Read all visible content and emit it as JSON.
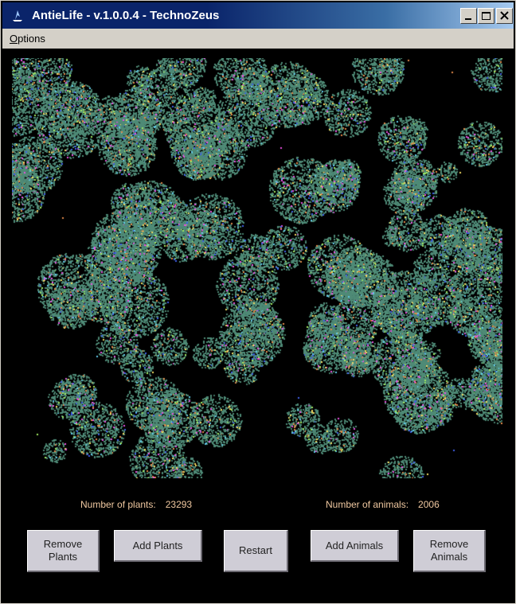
{
  "window": {
    "title": "AntieLife - v.1.0.0.4 - TechnoZeus"
  },
  "menu": {
    "options_label": "Options"
  },
  "stats": {
    "plants_label": "Number of plants:",
    "plants_value": "23293",
    "animals_label": "Number of animals:",
    "animals_value": "2006"
  },
  "buttons": {
    "remove_plants_line1": "Remove",
    "remove_plants_line2": "Plants",
    "add_plants": "Add Plants",
    "restart": "Restart",
    "add_animals": "Add Animals",
    "remove_animals_line1": "Remove",
    "remove_animals_line2": "Animals"
  },
  "colors": {
    "plant": "#4e8a76",
    "animals": [
      "#e08848",
      "#60c8e8",
      "#a0e860",
      "#4060e8",
      "#e850e0",
      "#f0d860"
    ]
  }
}
